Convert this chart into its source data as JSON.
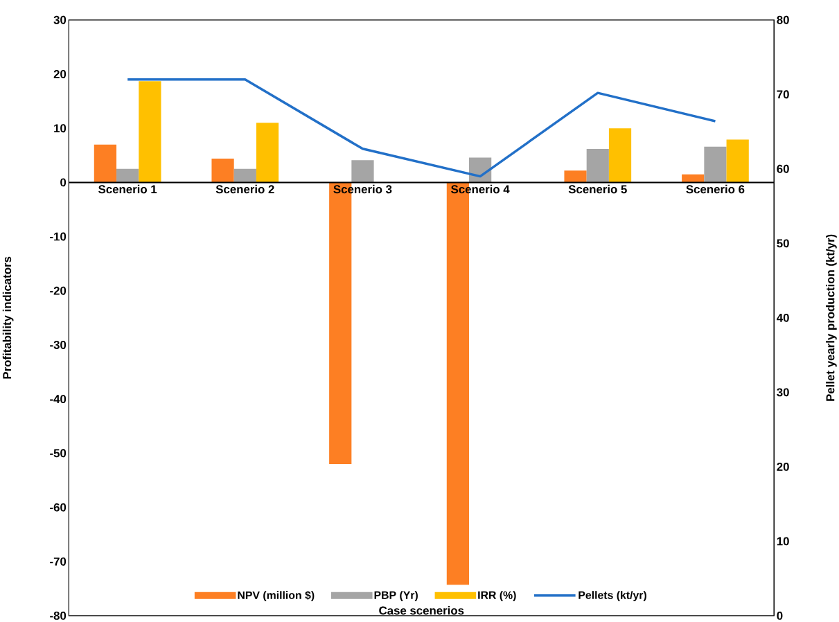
{
  "chart_data": {
    "type": "bar",
    "xlabel": "Case scenerios",
    "ylabel": "Profitability indicators",
    "y2label": "Pellet yearly production (kt/yr)",
    "categories": [
      "Scenerio 1",
      "Scenerio 2",
      "Scenerio 3",
      "Scenerio 4",
      "Scenerio 5",
      "Scenerio 6"
    ],
    "series": [
      {
        "name": "NPV (million $)",
        "color": "#fd7f23",
        "values": [
          7.0,
          4.4,
          -52,
          -74.3,
          2.2,
          1.5
        ]
      },
      {
        "name": "PBP (Yr)",
        "color": "#a5a5a5",
        "values": [
          2.5,
          2.5,
          4.1,
          4.6,
          6.2,
          6.6
        ]
      },
      {
        "name": "IRR (%)",
        "color": "#ffc000",
        "values": [
          18.7,
          11.0,
          null,
          null,
          10.0,
          7.9
        ]
      },
      {
        "name": "Pellets (kt/yr)",
        "color": "#2270c8",
        "type": "line",
        "axis": "y2",
        "marker": "none",
        "values": [
          72.0,
          72.0,
          62.7,
          59.0,
          70.2,
          66.4
        ]
      }
    ],
    "ylim": [
      -80,
      30
    ],
    "yticks": [
      -80,
      -70,
      -60,
      -50,
      -40,
      -30,
      -20,
      -10,
      0,
      10,
      20,
      30
    ],
    "y2lim": [
      0,
      80
    ],
    "y2ticks": [
      0,
      10,
      20,
      30,
      40,
      50,
      60,
      70,
      80
    ],
    "grid": false,
    "legend": "bottom"
  }
}
